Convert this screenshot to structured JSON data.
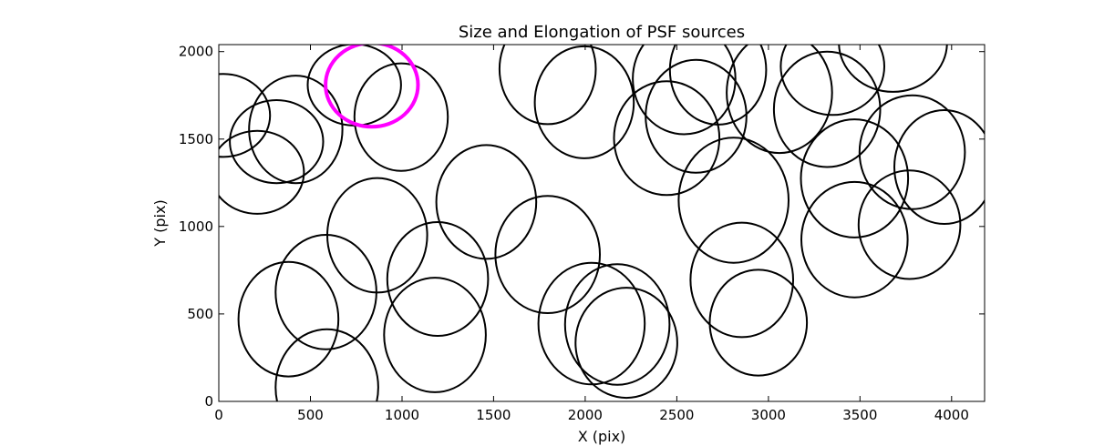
{
  "chart_data": {
    "type": "scatter",
    "title": "Size and Elongation of PSF sources",
    "xlabel": "X (pix)",
    "ylabel": "Y (pix)",
    "xlim": [
      0,
      4180
    ],
    "ylim": [
      0,
      2040
    ],
    "xticks": [
      0,
      500,
      1000,
      1500,
      2000,
      2500,
      3000,
      3500,
      4000
    ],
    "yticks": [
      0,
      500,
      1000,
      1500,
      2000
    ],
    "xtick_labels": [
      "0",
      "500",
      "1000",
      "1500",
      "2000",
      "2500",
      "3000",
      "3500",
      "4000"
    ],
    "ytick_labels": [
      "0",
      "500",
      "1000",
      "1500",
      "2000"
    ],
    "colors": {
      "default": "#000000",
      "highlight": "#ff00ff"
    },
    "sources": [
      {
        "x": 25,
        "y": 1635,
        "w": 510,
        "h": 475,
        "angle": 0
      },
      {
        "x": 210,
        "y": 1310,
        "w": 510,
        "h": 475,
        "angle": 0
      },
      {
        "x": 315,
        "y": 1485,
        "w": 510,
        "h": 475,
        "angle": 0
      },
      {
        "x": 420,
        "y": 1555,
        "w": 510,
        "h": 615,
        "angle": 0
      },
      {
        "x": 995,
        "y": 1625,
        "w": 510,
        "h": 615,
        "angle": 0
      },
      {
        "x": 740,
        "y": 1810,
        "w": 510,
        "h": 465,
        "angle": 0
      },
      {
        "x": 865,
        "y": 950,
        "w": 545,
        "h": 655,
        "angle": 0
      },
      {
        "x": 585,
        "y": 625,
        "w": 550,
        "h": 655,
        "angle": 0
      },
      {
        "x": 380,
        "y": 470,
        "w": 545,
        "h": 655,
        "angle": 0
      },
      {
        "x": 590,
        "y": 80,
        "w": 560,
        "h": 665,
        "angle": 0
      },
      {
        "x": 1195,
        "y": 700,
        "w": 550,
        "h": 650,
        "angle": 0
      },
      {
        "x": 1180,
        "y": 380,
        "w": 555,
        "h": 655,
        "angle": 0
      },
      {
        "x": 1460,
        "y": 1140,
        "w": 545,
        "h": 650,
        "angle": 0
      },
      {
        "x": 1795,
        "y": 1900,
        "w": 525,
        "h": 630,
        "angle": 0
      },
      {
        "x": 1995,
        "y": 1710,
        "w": 540,
        "h": 640,
        "angle": 0
      },
      {
        "x": 1795,
        "y": 840,
        "w": 570,
        "h": 670,
        "angle": 0
      },
      {
        "x": 2035,
        "y": 445,
        "w": 580,
        "h": 695,
        "angle": 0
      },
      {
        "x": 2175,
        "y": 440,
        "w": 570,
        "h": 690,
        "angle": 0
      },
      {
        "x": 2225,
        "y": 335,
        "w": 555,
        "h": 630,
        "angle": 0
      },
      {
        "x": 2445,
        "y": 1505,
        "w": 575,
        "h": 650,
        "angle": 0
      },
      {
        "x": 2540,
        "y": 1845,
        "w": 560,
        "h": 635,
        "angle": 0
      },
      {
        "x": 2605,
        "y": 1630,
        "w": 550,
        "h": 645,
        "angle": 0
      },
      {
        "x": 2725,
        "y": 1895,
        "w": 525,
        "h": 625,
        "angle": 0
      },
      {
        "x": 2810,
        "y": 1150,
        "w": 600,
        "h": 715,
        "angle": 0
      },
      {
        "x": 2855,
        "y": 695,
        "w": 560,
        "h": 655,
        "angle": 0
      },
      {
        "x": 2945,
        "y": 450,
        "w": 530,
        "h": 605,
        "angle": 0
      },
      {
        "x": 3060,
        "y": 1765,
        "w": 575,
        "h": 690,
        "angle": 0
      },
      {
        "x": 3350,
        "y": 1915,
        "w": 565,
        "h": 555,
        "angle": 0
      },
      {
        "x": 3320,
        "y": 1670,
        "w": 580,
        "h": 660,
        "angle": 0
      },
      {
        "x": 3470,
        "y": 1275,
        "w": 585,
        "h": 675,
        "angle": 0
      },
      {
        "x": 3470,
        "y": 925,
        "w": 580,
        "h": 660,
        "angle": 0
      },
      {
        "x": 3680,
        "y": 2050,
        "w": 590,
        "h": 560,
        "angle": 0
      },
      {
        "x": 3785,
        "y": 1425,
        "w": 575,
        "h": 650,
        "angle": 0
      },
      {
        "x": 3770,
        "y": 1010,
        "w": 555,
        "h": 620,
        "angle": 0
      },
      {
        "x": 3960,
        "y": 1340,
        "w": 545,
        "h": 650,
        "angle": 0
      },
      {
        "x": 835,
        "y": 1810,
        "w": 505,
        "h": 480,
        "angle": 0,
        "highlight": true
      }
    ]
  }
}
